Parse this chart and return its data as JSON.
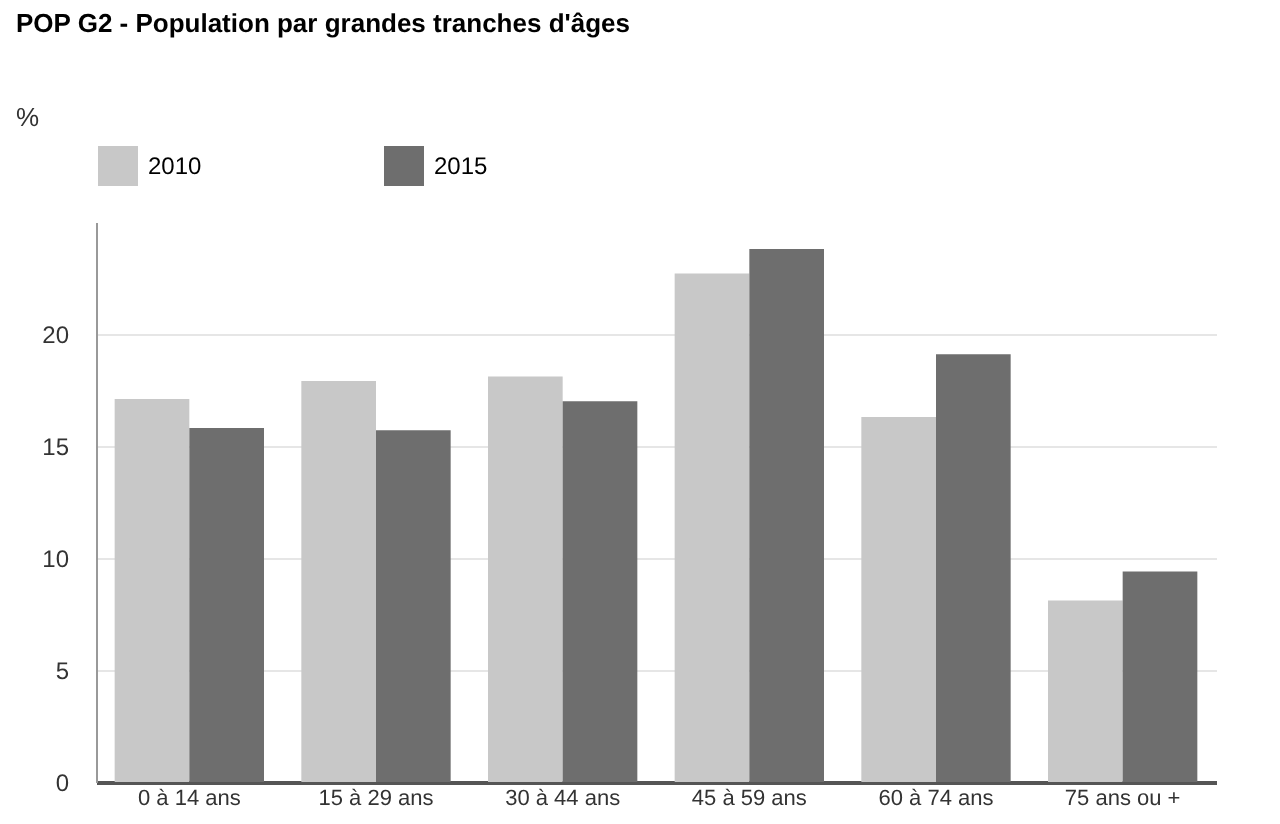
{
  "chart_data": {
    "type": "bar",
    "title": "POP G2 - Population par grandes tranches d'âges",
    "ylabel": "%",
    "categories": [
      "0 à 14\nans",
      "15 à 29\nans",
      "30 à 44\nans",
      "45 à 59\nans",
      "60 à 74\nans",
      "75 ans\nou +"
    ],
    "series": [
      {
        "name": "2010",
        "color": "#c8c8c8",
        "values": [
          17.1,
          17.9,
          18.1,
          22.7,
          16.3,
          8.1
        ]
      },
      {
        "name": "2015",
        "color": "#6e6e6e",
        "values": [
          15.8,
          15.7,
          17.0,
          23.8,
          19.1,
          9.4
        ]
      }
    ],
    "ylim": [
      0,
      25
    ],
    "yticks": [
      0,
      5,
      10,
      15,
      20
    ],
    "grid": "y",
    "legend": "top"
  }
}
